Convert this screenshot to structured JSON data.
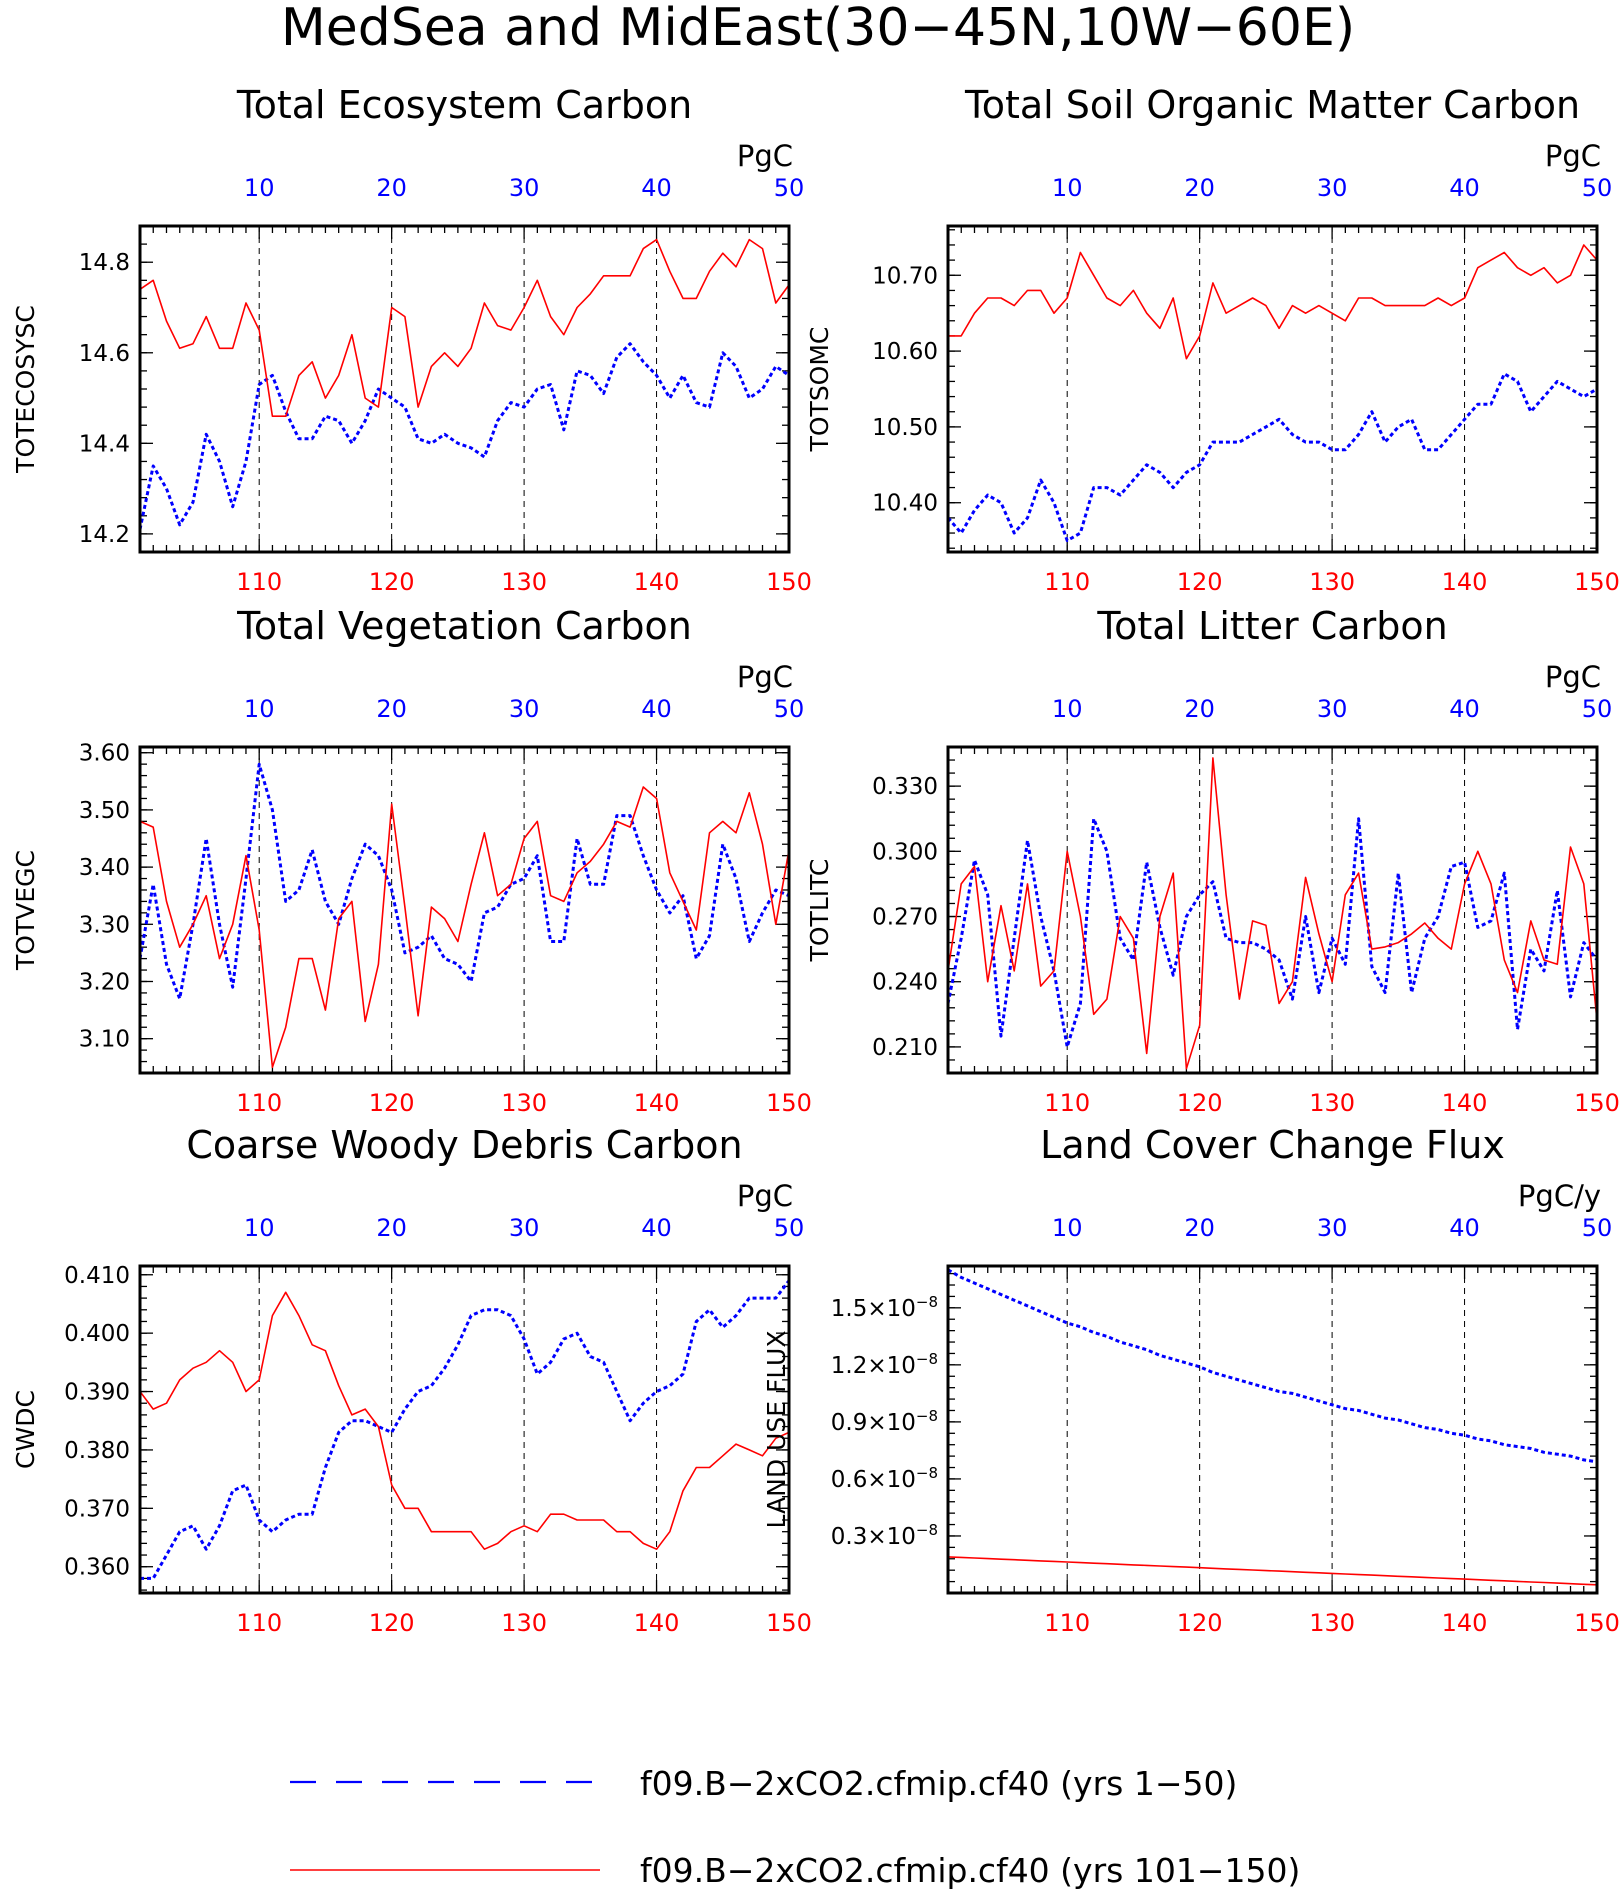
{
  "title": "MedSea and MidEast(30−45N,10W−60E)",
  "colors": {
    "red": "#ff0000",
    "blue": "#0000ff",
    "axis": "#000000"
  },
  "legend": [
    {
      "label": "f09.B−2xCO2.cfmip.cf40 (yrs 1−50)",
      "color": "#0000ff",
      "style": "dashed"
    },
    {
      "label": "f09.B−2xCO2.cfmip.cf40 (yrs 101−150)",
      "color": "#ff0000",
      "style": "solid"
    }
  ],
  "chart_data": [
    {
      "type": "line",
      "title": "Total Ecosystem Carbon",
      "ylabel": "TOTECOSYSC",
      "units": "PgC",
      "bottom_axis": {
        "range": [
          101,
          150
        ],
        "ticks": [
          "110",
          "120",
          "130",
          "140",
          "150"
        ],
        "color": "#ff0000"
      },
      "top_axis": {
        "range": [
          1,
          50
        ],
        "ticks": [
          "10",
          "20",
          "30",
          "40",
          "50"
        ],
        "color": "#0000ff"
      },
      "ylim": [
        14.16,
        14.88
      ],
      "yticks": [
        14.2,
        14.4,
        14.6,
        14.8
      ],
      "ytick_labels": [
        "14.2",
        "14.4",
        "14.6",
        "14.8"
      ],
      "series": [
        {
          "axis": "top",
          "color": "#0000ff",
          "style": "dotted",
          "values": [
            14.21,
            14.35,
            14.3,
            14.22,
            14.27,
            14.42,
            14.36,
            14.26,
            14.36,
            14.53,
            14.55,
            14.47,
            14.41,
            14.41,
            14.46,
            14.45,
            14.4,
            14.45,
            14.52,
            14.5,
            14.48,
            14.41,
            14.4,
            14.42,
            14.4,
            14.39,
            14.37,
            14.45,
            14.49,
            14.48,
            14.52,
            14.53,
            14.43,
            14.56,
            14.55,
            14.51,
            14.59,
            14.62,
            14.58,
            14.55,
            14.5,
            14.55,
            14.49,
            14.48,
            14.6,
            14.57,
            14.5,
            14.52,
            14.57,
            14.55
          ]
        },
        {
          "axis": "bottom",
          "color": "#ff0000",
          "style": "solid",
          "values": [
            14.74,
            14.76,
            14.67,
            14.61,
            14.62,
            14.68,
            14.61,
            14.61,
            14.71,
            14.65,
            14.46,
            14.46,
            14.55,
            14.58,
            14.5,
            14.55,
            14.64,
            14.5,
            14.48,
            14.7,
            14.68,
            14.48,
            14.57,
            14.6,
            14.57,
            14.61,
            14.71,
            14.66,
            14.65,
            14.7,
            14.76,
            14.68,
            14.64,
            14.7,
            14.73,
            14.77,
            14.77,
            14.77,
            14.83,
            14.85,
            14.78,
            14.72,
            14.72,
            14.78,
            14.82,
            14.79,
            14.85,
            14.83,
            14.71,
            14.75
          ]
        }
      ]
    },
    {
      "type": "line",
      "title": "Total Soil Organic Matter Carbon",
      "ylabel": "TOTSOMC",
      "units": "PgC",
      "bottom_axis": {
        "range": [
          101,
          150
        ],
        "ticks": [
          "110",
          "120",
          "130",
          "140",
          "150"
        ],
        "color": "#ff0000"
      },
      "top_axis": {
        "range": [
          1,
          50
        ],
        "ticks": [
          "10",
          "20",
          "30",
          "40",
          "50"
        ],
        "color": "#0000ff"
      },
      "ylim": [
        10.335,
        10.765
      ],
      "yticks": [
        10.4,
        10.5,
        10.6,
        10.7
      ],
      "ytick_labels": [
        "10.40",
        "10.50",
        "10.60",
        "10.70"
      ],
      "series": [
        {
          "axis": "top",
          "color": "#0000ff",
          "style": "dotted",
          "values": [
            10.38,
            10.36,
            10.39,
            10.41,
            10.4,
            10.36,
            10.38,
            10.43,
            10.4,
            10.35,
            10.36,
            10.42,
            10.42,
            10.41,
            10.43,
            10.45,
            10.44,
            10.42,
            10.44,
            10.45,
            10.48,
            10.48,
            10.48,
            10.49,
            10.5,
            10.51,
            10.49,
            10.48,
            10.48,
            10.47,
            10.47,
            10.49,
            10.52,
            10.48,
            10.5,
            10.51,
            10.47,
            10.47,
            10.49,
            10.51,
            10.53,
            10.53,
            10.57,
            10.56,
            10.52,
            10.54,
            10.56,
            10.55,
            10.54,
            10.55
          ]
        },
        {
          "axis": "bottom",
          "color": "#ff0000",
          "style": "solid",
          "values": [
            10.62,
            10.62,
            10.65,
            10.67,
            10.67,
            10.66,
            10.68,
            10.68,
            10.65,
            10.67,
            10.73,
            10.7,
            10.67,
            10.66,
            10.68,
            10.65,
            10.63,
            10.67,
            10.59,
            10.62,
            10.69,
            10.65,
            10.66,
            10.67,
            10.66,
            10.63,
            10.66,
            10.65,
            10.66,
            10.65,
            10.64,
            10.67,
            10.67,
            10.66,
            10.66,
            10.66,
            10.66,
            10.67,
            10.66,
            10.67,
            10.71,
            10.72,
            10.73,
            10.71,
            10.7,
            10.71,
            10.69,
            10.7,
            10.74,
            10.72
          ]
        }
      ]
    },
    {
      "type": "line",
      "title": "Total Vegetation Carbon",
      "ylabel": "TOTVEGC",
      "units": "PgC",
      "bottom_axis": {
        "range": [
          101,
          150
        ],
        "ticks": [
          "110",
          "120",
          "130",
          "140",
          "150"
        ],
        "color": "#ff0000"
      },
      "top_axis": {
        "range": [
          1,
          50
        ],
        "ticks": [
          "10",
          "20",
          "30",
          "40",
          "50"
        ],
        "color": "#0000ff"
      },
      "ylim": [
        3.04,
        3.61
      ],
      "yticks": [
        3.1,
        3.2,
        3.3,
        3.4,
        3.5,
        3.6
      ],
      "ytick_labels": [
        "3.10",
        "3.20",
        "3.30",
        "3.40",
        "3.50",
        "3.60"
      ],
      "series": [
        {
          "axis": "top",
          "color": "#0000ff",
          "style": "dotted",
          "values": [
            3.24,
            3.37,
            3.23,
            3.17,
            3.3,
            3.45,
            3.3,
            3.19,
            3.38,
            3.58,
            3.5,
            3.34,
            3.36,
            3.43,
            3.34,
            3.3,
            3.38,
            3.44,
            3.42,
            3.36,
            3.25,
            3.26,
            3.28,
            3.24,
            3.23,
            3.2,
            3.32,
            3.33,
            3.37,
            3.38,
            3.42,
            3.27,
            3.27,
            3.45,
            3.37,
            3.37,
            3.49,
            3.49,
            3.42,
            3.36,
            3.32,
            3.35,
            3.24,
            3.28,
            3.44,
            3.38,
            3.27,
            3.32,
            3.36,
            3.35
          ]
        },
        {
          "axis": "bottom",
          "color": "#ff0000",
          "style": "solid",
          "values": [
            3.48,
            3.47,
            3.34,
            3.26,
            3.3,
            3.35,
            3.24,
            3.3,
            3.42,
            3.29,
            3.05,
            3.12,
            3.24,
            3.24,
            3.15,
            3.31,
            3.34,
            3.13,
            3.23,
            3.51,
            3.33,
            3.14,
            3.33,
            3.31,
            3.27,
            3.37,
            3.46,
            3.35,
            3.37,
            3.45,
            3.48,
            3.35,
            3.34,
            3.39,
            3.41,
            3.44,
            3.48,
            3.47,
            3.54,
            3.52,
            3.39,
            3.34,
            3.29,
            3.46,
            3.48,
            3.46,
            3.53,
            3.44,
            3.3,
            3.43
          ]
        }
      ]
    },
    {
      "type": "line",
      "title": "Total Litter Carbon",
      "ylabel": "TOTLITC",
      "units": "PgC",
      "bottom_axis": {
        "range": [
          101,
          150
        ],
        "ticks": [
          "110",
          "120",
          "130",
          "140",
          "150"
        ],
        "color": "#ff0000"
      },
      "top_axis": {
        "range": [
          1,
          50
        ],
        "ticks": [
          "10",
          "20",
          "30",
          "40",
          "50"
        ],
        "color": "#0000ff"
      },
      "ylim": [
        0.198,
        0.348
      ],
      "yticks": [
        0.21,
        0.24,
        0.27,
        0.3,
        0.33
      ],
      "ytick_labels": [
        "0.210",
        "0.240",
        "0.270",
        "0.300",
        "0.330"
      ],
      "series": [
        {
          "axis": "top",
          "color": "#0000ff",
          "style": "dotted",
          "values": [
            0.23,
            0.26,
            0.296,
            0.28,
            0.215,
            0.26,
            0.305,
            0.27,
            0.245,
            0.21,
            0.23,
            0.315,
            0.3,
            0.26,
            0.25,
            0.295,
            0.265,
            0.243,
            0.27,
            0.28,
            0.286,
            0.26,
            0.258,
            0.258,
            0.255,
            0.25,
            0.232,
            0.27,
            0.235,
            0.26,
            0.248,
            0.315,
            0.247,
            0.235,
            0.29,
            0.235,
            0.26,
            0.27,
            0.293,
            0.295,
            0.265,
            0.268,
            0.29,
            0.218,
            0.255,
            0.245,
            0.282,
            0.233,
            0.258,
            0.25
          ]
        },
        {
          "axis": "bottom",
          "color": "#ff0000",
          "style": "solid",
          "values": [
            0.245,
            0.285,
            0.293,
            0.24,
            0.275,
            0.245,
            0.285,
            0.238,
            0.245,
            0.3,
            0.27,
            0.225,
            0.232,
            0.27,
            0.26,
            0.207,
            0.27,
            0.29,
            0.2,
            0.22,
            0.343,
            0.28,
            0.232,
            0.268,
            0.266,
            0.23,
            0.24,
            0.288,
            0.262,
            0.24,
            0.28,
            0.29,
            0.255,
            0.256,
            0.258,
            0.262,
            0.267,
            0.26,
            0.255,
            0.285,
            0.3,
            0.285,
            0.25,
            0.235,
            0.268,
            0.25,
            0.248,
            0.302,
            0.285,
            0.222
          ]
        }
      ]
    },
    {
      "type": "line",
      "title": "Coarse Woody Debris Carbon",
      "ylabel": "CWDC",
      "units": "PgC",
      "bottom_axis": {
        "range": [
          101,
          150
        ],
        "ticks": [
          "110",
          "120",
          "130",
          "140",
          "150"
        ],
        "color": "#ff0000"
      },
      "top_axis": {
        "range": [
          1,
          50
        ],
        "ticks": [
          "10",
          "20",
          "30",
          "40",
          "50"
        ],
        "color": "#0000ff"
      },
      "ylim": [
        0.3555,
        0.4115
      ],
      "yticks": [
        0.36,
        0.37,
        0.38,
        0.39,
        0.4,
        0.41
      ],
      "ytick_labels": [
        "0.360",
        "0.370",
        "0.380",
        "0.390",
        "0.400",
        "0.410"
      ],
      "series": [
        {
          "axis": "top",
          "color": "#0000ff",
          "style": "dotted",
          "values": [
            0.358,
            0.358,
            0.362,
            0.366,
            0.367,
            0.363,
            0.367,
            0.373,
            0.374,
            0.368,
            0.366,
            0.368,
            0.369,
            0.369,
            0.377,
            0.383,
            0.385,
            0.385,
            0.384,
            0.383,
            0.387,
            0.39,
            0.391,
            0.394,
            0.398,
            0.403,
            0.404,
            0.404,
            0.403,
            0.399,
            0.393,
            0.395,
            0.399,
            0.4,
            0.396,
            0.395,
            0.39,
            0.385,
            0.388,
            0.39,
            0.391,
            0.393,
            0.402,
            0.404,
            0.401,
            0.403,
            0.406,
            0.406,
            0.406,
            0.409
          ]
        },
        {
          "axis": "bottom",
          "color": "#ff0000",
          "style": "solid",
          "values": [
            0.39,
            0.387,
            0.388,
            0.392,
            0.394,
            0.395,
            0.397,
            0.395,
            0.39,
            0.392,
            0.403,
            0.407,
            0.403,
            0.398,
            0.397,
            0.391,
            0.386,
            0.387,
            0.384,
            0.374,
            0.37,
            0.37,
            0.366,
            0.366,
            0.366,
            0.366,
            0.363,
            0.364,
            0.366,
            0.367,
            0.366,
            0.369,
            0.369,
            0.368,
            0.368,
            0.368,
            0.366,
            0.366,
            0.364,
            0.363,
            0.366,
            0.373,
            0.377,
            0.377,
            0.379,
            0.381,
            0.38,
            0.379,
            0.382,
            0.383
          ]
        }
      ]
    },
    {
      "type": "line",
      "title": "Land Cover Change Flux",
      "ylabel": "LAND USE FLUX",
      "units": "PgC/y",
      "bottom_axis": {
        "range": [
          101,
          150
        ],
        "ticks": [
          "110",
          "120",
          "130",
          "140",
          "150"
        ],
        "color": "#ff0000"
      },
      "top_axis": {
        "range": [
          1,
          50
        ],
        "ticks": [
          "10",
          "20",
          "30",
          "40",
          "50"
        ],
        "color": "#0000ff"
      },
      "ylim": [
        0,
        1.72
      ],
      "yscale": "1e-8",
      "yticks": [
        0.3,
        0.6,
        0.9,
        1.2,
        1.5
      ],
      "ytick_mantissa": [
        "0.3×10",
        "0.6×10",
        "0.9×10",
        "1.2×10",
        "1.5×10"
      ],
      "ytick_exponent": "−8",
      "series": [
        {
          "axis": "top",
          "color": "#0000ff",
          "style": "dotted",
          "values": [
            1.7,
            1.66,
            1.63,
            1.6,
            1.57,
            1.54,
            1.51,
            1.48,
            1.45,
            1.42,
            1.4,
            1.37,
            1.35,
            1.32,
            1.3,
            1.28,
            1.25,
            1.23,
            1.21,
            1.19,
            1.16,
            1.14,
            1.12,
            1.1,
            1.08,
            1.06,
            1.05,
            1.03,
            1.01,
            0.99,
            0.97,
            0.96,
            0.94,
            0.92,
            0.91,
            0.89,
            0.87,
            0.86,
            0.84,
            0.83,
            0.81,
            0.8,
            0.78,
            0.77,
            0.76,
            0.74,
            0.73,
            0.72,
            0.7,
            0.69
          ]
        },
        {
          "axis": "bottom",
          "color": "#ff0000",
          "style": "solid",
          "values": [
            0.19,
            0.187,
            0.184,
            0.181,
            0.178,
            0.175,
            0.172,
            0.169,
            0.166,
            0.163,
            0.16,
            0.157,
            0.154,
            0.151,
            0.148,
            0.145,
            0.142,
            0.139,
            0.136,
            0.133,
            0.13,
            0.127,
            0.124,
            0.121,
            0.118,
            0.115,
            0.112,
            0.109,
            0.106,
            0.103,
            0.1,
            0.097,
            0.094,
            0.091,
            0.088,
            0.085,
            0.082,
            0.079,
            0.076,
            0.073,
            0.07,
            0.067,
            0.064,
            0.061,
            0.058,
            0.055,
            0.052,
            0.049,
            0.046,
            0.043
          ]
        }
      ]
    }
  ]
}
